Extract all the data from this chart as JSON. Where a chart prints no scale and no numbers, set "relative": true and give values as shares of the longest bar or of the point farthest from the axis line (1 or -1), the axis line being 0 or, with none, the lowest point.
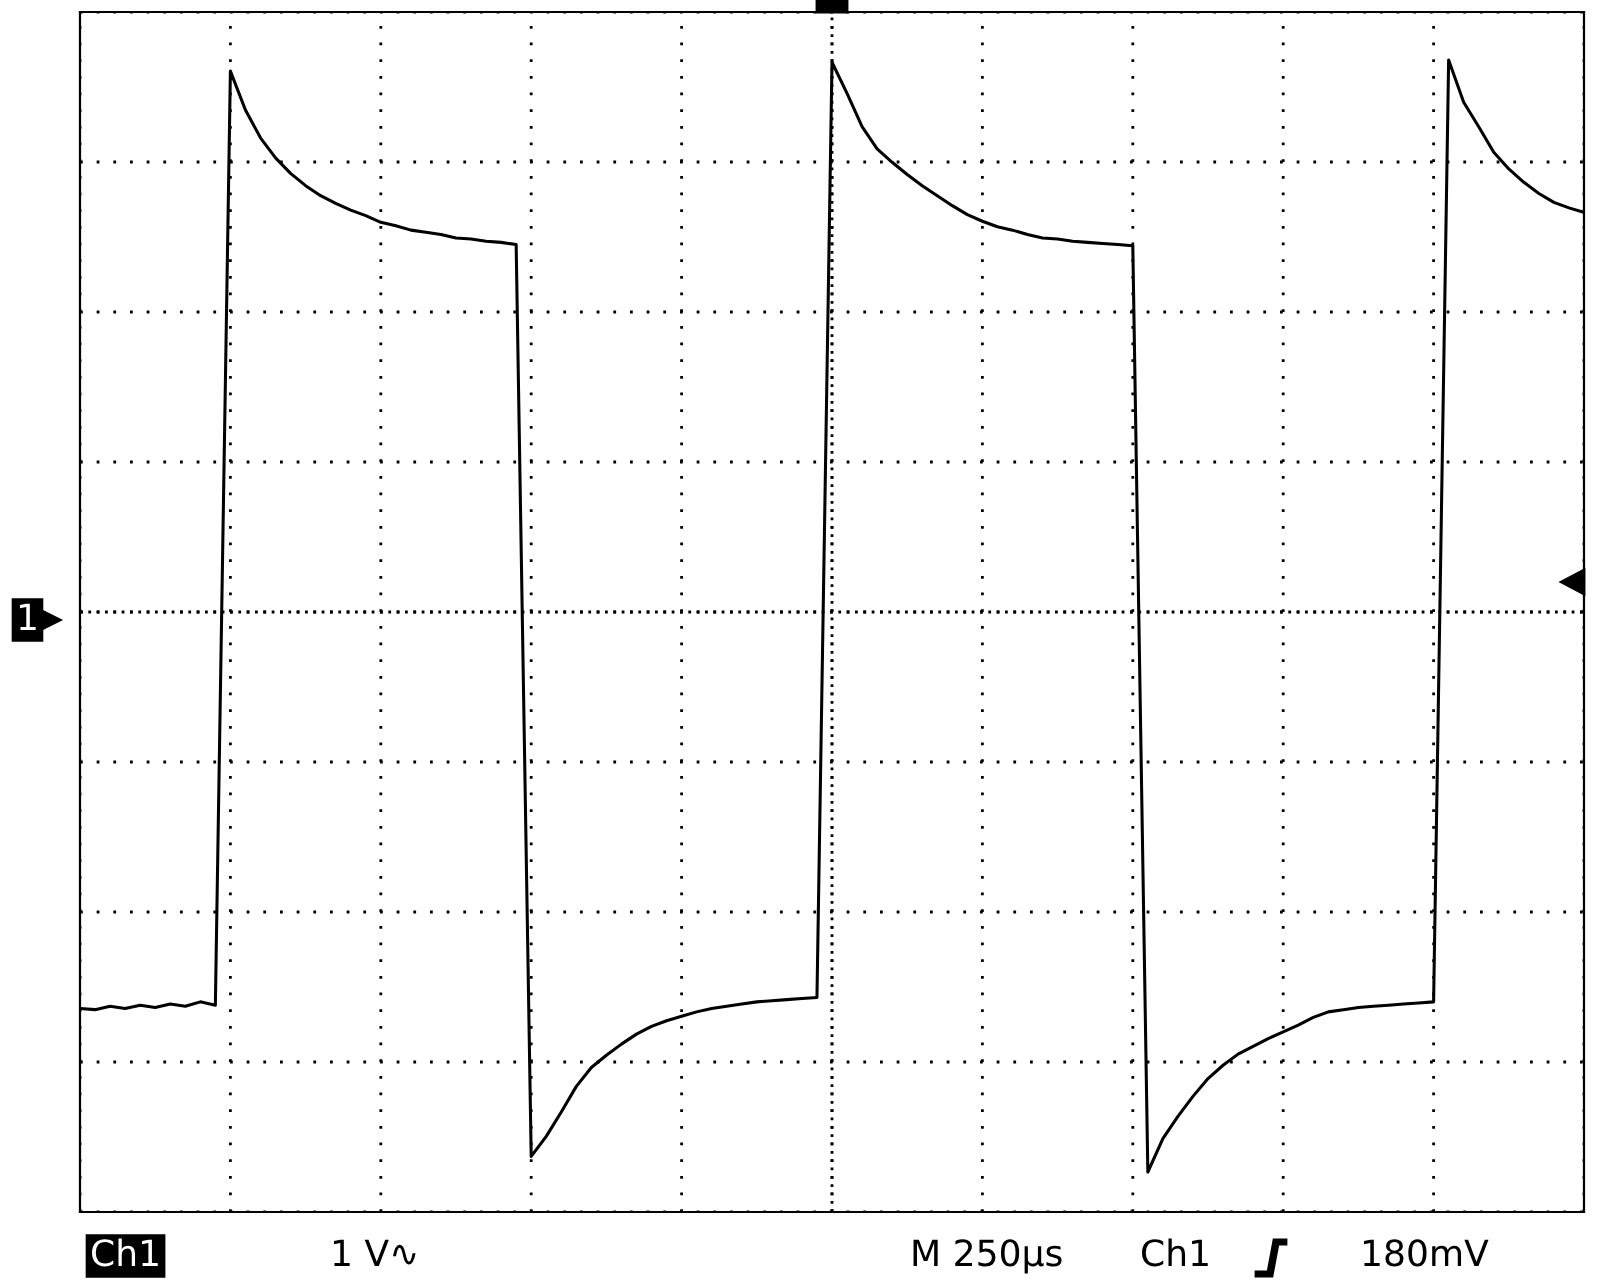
{
  "chart_data": {
    "type": "line",
    "relative": true,
    "grid": true,
    "line_style": "solid",
    "marker": "none",
    "categories": [
      null,
      null,
      null,
      null,
      null,
      null,
      null,
      null,
      null,
      null,
      null,
      null,
      null,
      null,
      null,
      null,
      null,
      null,
      null,
      null,
      null,
      null,
      null,
      null,
      null,
      null,
      null,
      null,
      null,
      null,
      null,
      null,
      null,
      null,
      null,
      null,
      null,
      null,
      null,
      null,
      null,
      null,
      null,
      null,
      null,
      null,
      null,
      null,
      null,
      null,
      null,
      null,
      null,
      null,
      null,
      null,
      null,
      null,
      null,
      null,
      null,
      null,
      null,
      null,
      null,
      null,
      null,
      null,
      null,
      null,
      null,
      null,
      null,
      null,
      null,
      null,
      null,
      null,
      null,
      null,
      null,
      null,
      null,
      null,
      null,
      null,
      null,
      null,
      null,
      null,
      null,
      null,
      null,
      null,
      null,
      null,
      null,
      null,
      null,
      null,
      null
    ],
    "series": [
      {
        "color": "#000000",
        "values": [
          0.147,
          0.146,
          0.149,
          0.147,
          0.15,
          0.148,
          0.151,
          0.149,
          0.153,
          0.15,
          0.99,
          0.955,
          0.93,
          0.912,
          0.898,
          0.887,
          0.878,
          0.871,
          0.865,
          0.86,
          0.854,
          0.851,
          0.847,
          0.845,
          0.843,
          0.84,
          0.839,
          0.837,
          0.836,
          0.834,
          0.014,
          0.032,
          0.054,
          0.077,
          0.094,
          0.105,
          0.115,
          0.124,
          0.131,
          0.136,
          0.14,
          0.144,
          0.147,
          0.149,
          0.151,
          0.153,
          0.154,
          0.155,
          0.156,
          0.157,
          0.998,
          0.97,
          0.94,
          0.92,
          0.908,
          0.897,
          0.887,
          0.878,
          0.869,
          0.861,
          0.855,
          0.85,
          0.847,
          0.843,
          0.84,
          0.839,
          0.837,
          0.836,
          0.835,
          0.834,
          0.833,
          0,
          0.03,
          0.05,
          0.068,
          0.084,
          0.096,
          0.106,
          0.113,
          0.12,
          0.126,
          0.132,
          0.139,
          0.144,
          0.146,
          0.148,
          0.149,
          0.15,
          0.151,
          0.152,
          0.153,
          1,
          0.962,
          0.94,
          0.917,
          0.902,
          0.89,
          0.88,
          0.872,
          0.867,
          0.863
        ]
      }
    ],
    "annotations": [
      "Ch1",
      "1 V∿",
      "M 250µs",
      "Ch1",
      "180mV",
      "1"
    ]
  }
}
